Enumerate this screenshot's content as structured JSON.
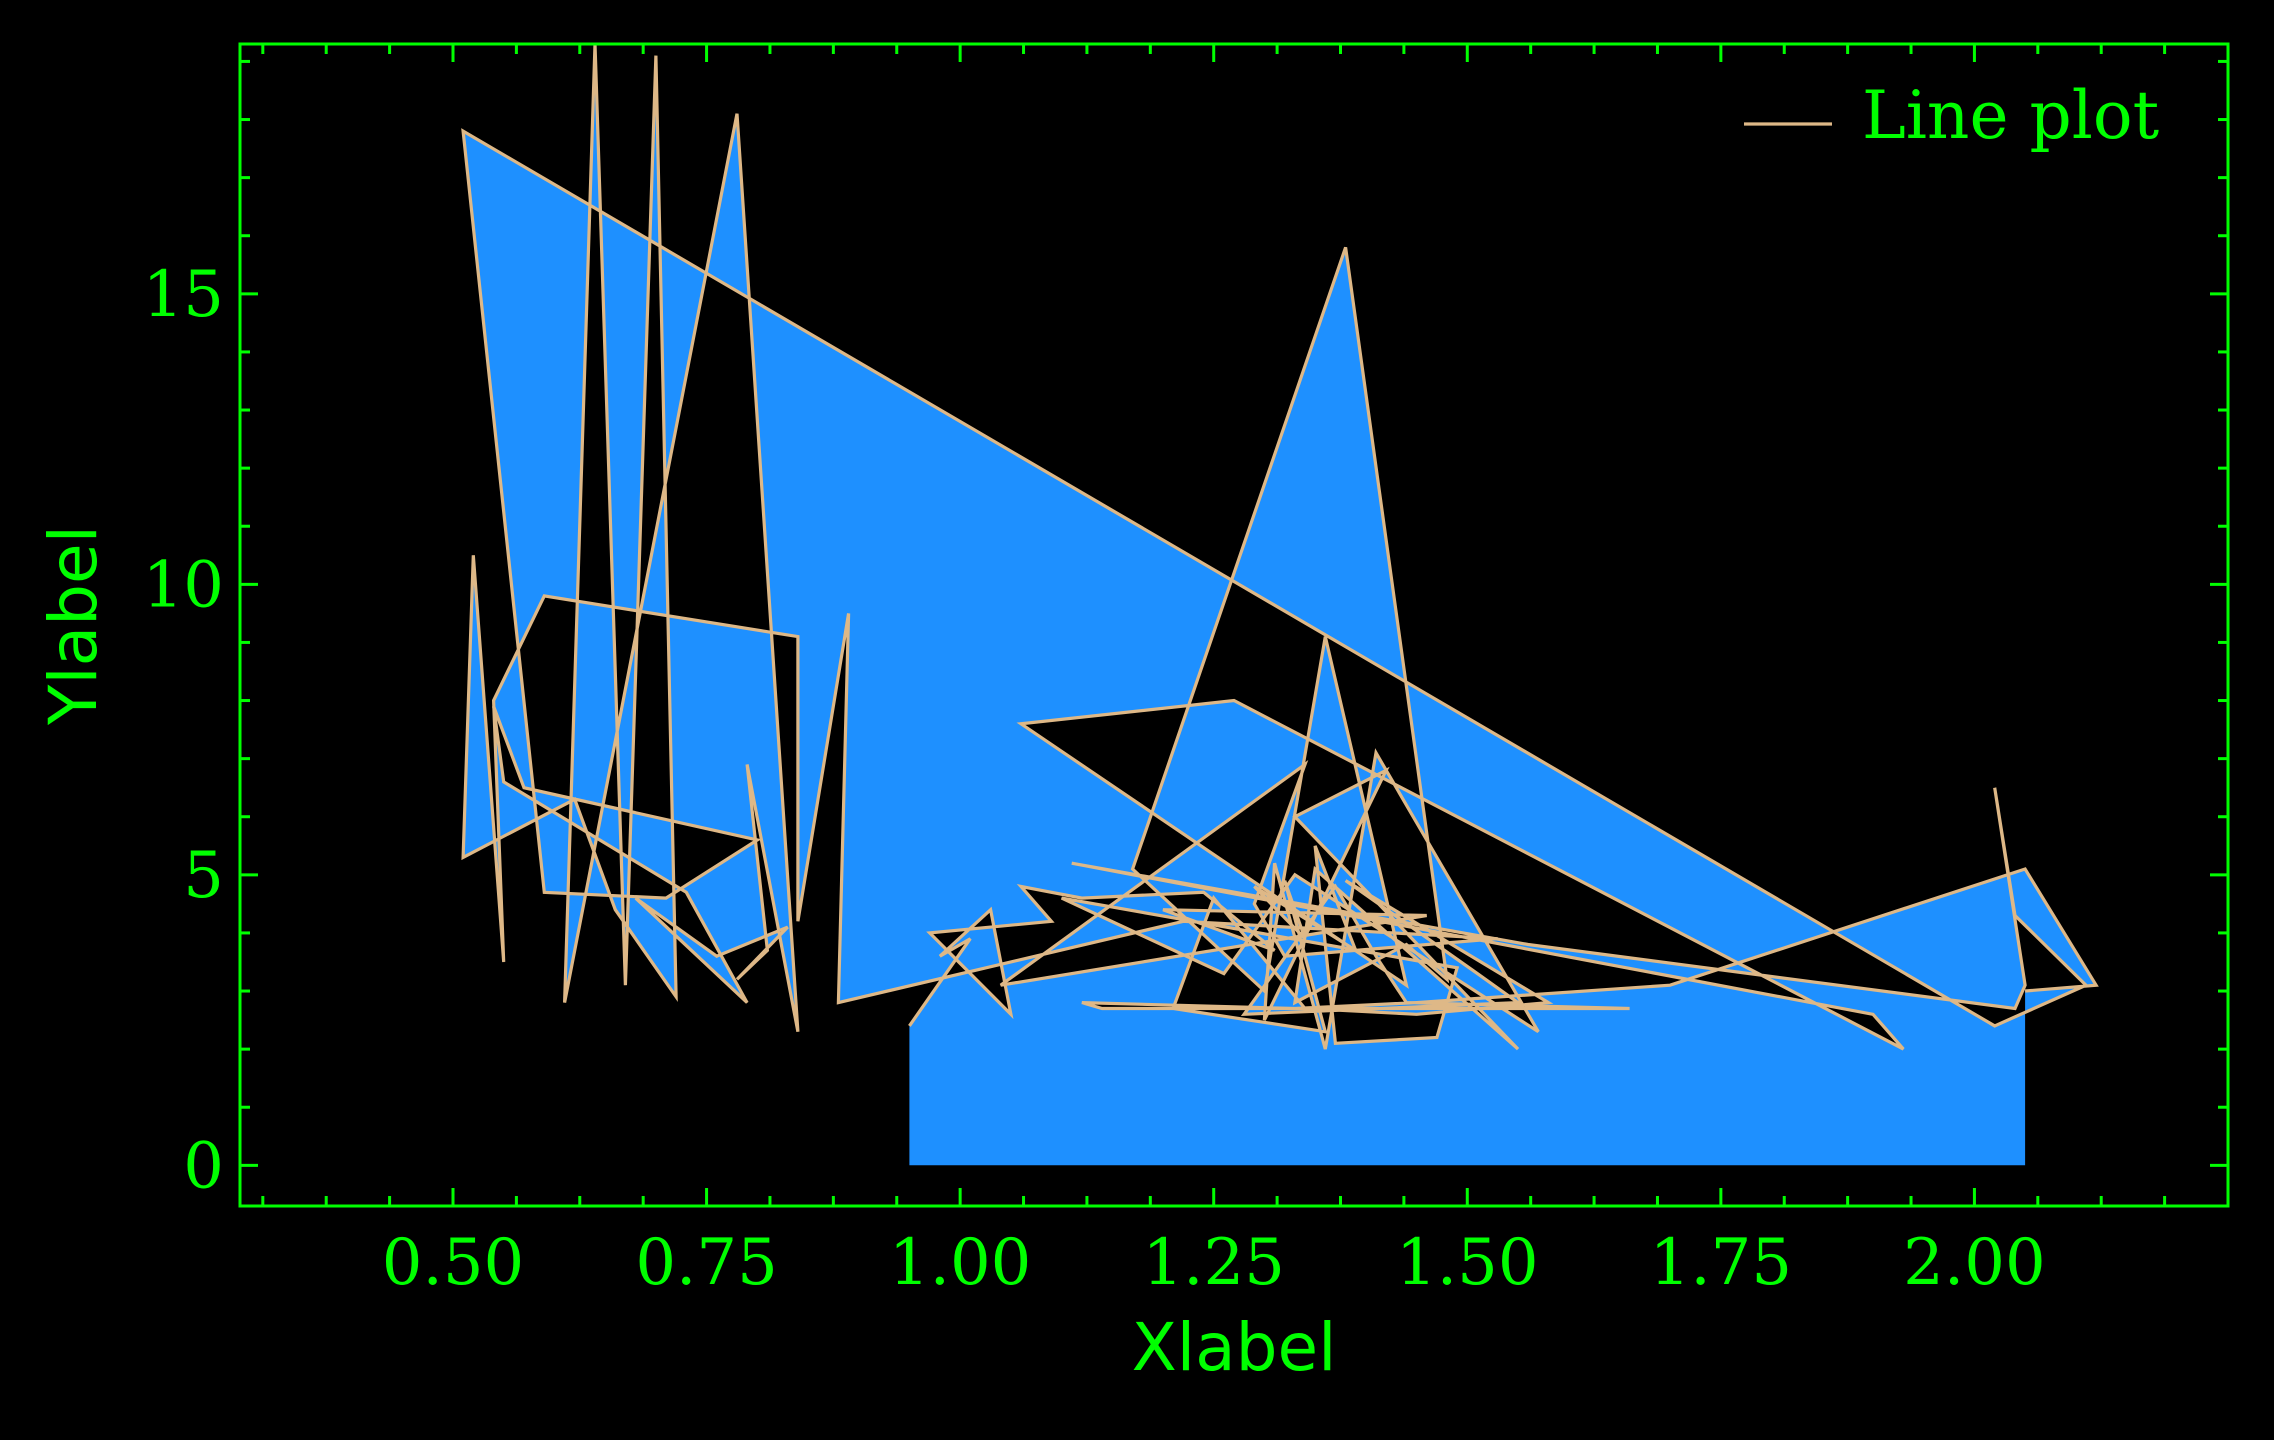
{
  "colors": {
    "background": "#000000",
    "axes": "#00ff00",
    "line": "#deb887",
    "fill": "#1e90ff"
  },
  "chart_data": {
    "type": "line",
    "title": "",
    "xlabel": "Xlabel",
    "ylabel": "Ylabel",
    "xlim": [
      0.29,
      2.25
    ],
    "ylim": [
      -0.7,
      19.3
    ],
    "x_ticks": [
      0.5,
      0.75,
      1.0,
      1.25,
      1.5,
      1.75,
      2.0
    ],
    "x_tick_labels": [
      "0.50",
      "0.75",
      "1.00",
      "1.25",
      "1.50",
      "1.75",
      "2.00"
    ],
    "y_ticks": [
      0,
      5,
      10,
      15
    ],
    "y_tick_labels": [
      "0",
      "5",
      "10",
      "15"
    ],
    "grid": false,
    "legend": {
      "position": "upper right",
      "entries": [
        "Line plot"
      ]
    },
    "series": [
      {
        "name": "Line plot",
        "style": "line with filled area to y=0",
        "x": [
          0.95,
          1.01,
          0.98,
          1.03,
          1.05,
          0.97,
          1.09,
          1.06,
          1.12,
          1.24,
          1.31,
          1.2,
          1.46,
          1.04,
          1.34,
          1.29,
          1.32,
          1.53,
          1.22,
          0.88,
          0.89,
          0.84,
          0.84,
          0.59,
          0.54,
          0.55,
          0.52,
          0.51,
          0.62,
          0.66,
          0.72,
          0.7,
          0.67,
          0.64,
          0.61,
          0.78,
          0.84,
          0.79,
          0.81,
          0.78,
          0.83,
          0.76,
          0.68,
          0.79,
          0.73,
          0.55,
          0.54,
          0.57,
          0.8,
          0.71,
          0.59,
          0.51,
          2.02,
          2.11,
          2.04,
          2.02,
          2.05,
          2.04,
          1.56,
          1.11,
          1.9,
          1.93,
          1.27,
          1.06,
          1.44,
          1.36,
          1.3,
          1.17,
          1.38,
          1.48,
          1.44,
          1.33,
          1.35,
          1.55,
          1.33,
          1.42,
          1.3,
          1.31,
          1.36,
          1.41,
          1.57,
          1.33,
          1.26,
          1.1,
          1.49,
          1.47,
          1.37,
          1.35,
          1.39,
          1.29,
          1.34,
          1.32,
          1.36,
          1.21,
          1.25,
          1.34,
          1.45,
          1.58,
          1.38,
          1.51,
          1.55,
          1.28,
          1.37,
          1.41,
          1.44,
          1.66,
          1.46,
          1.14,
          1.12,
          1.33,
          1.45,
          1.7,
          2.05,
          2.12,
          2.05
        ],
        "y": [
          2.4,
          3.9,
          3.6,
          4.4,
          2.6,
          4.0,
          4.2,
          4.8,
          4.6,
          4.7,
          3.7,
          4.4,
          4.3,
          3.1,
          6.9,
          4.5,
          3.6,
          3.9,
          4.2,
          2.8,
          9.5,
          4.2,
          9.1,
          9.8,
          8.0,
          3.5,
          10.5,
          5.3,
          6.3,
          4.4,
          2.9,
          19.1,
          3.1,
          19.3,
          2.8,
          18.1,
          2.3,
          6.9,
          3.7,
          3.2,
          4.1,
          3.6,
          4.6,
          2.8,
          4.7,
          6.6,
          7.9,
          6.5,
          5.6,
          4.6,
          4.7,
          17.8,
          2.4,
          3.1,
          4.3,
          6.5,
          3.1,
          2.7,
          3.8,
          5.2,
          2.6,
          2.0,
          8.0,
          7.6,
          3.1,
          9.1,
          3.0,
          5.1,
          15.8,
          3.2,
          3.8,
          2.8,
          5.1,
          2.0,
          6.0,
          6.8,
          2.5,
          5.2,
          2.0,
          7.1,
          2.3,
          5.0,
          3.3,
          4.6,
          3.4,
          2.2,
          2.1,
          5.5,
          3.7,
          4.8,
          3.9,
          4.9,
          2.3,
          2.7,
          4.6,
          2.7,
          2.6,
          2.8,
          4.9,
          3.3,
          2.8,
          2.6,
          4.8,
          3.6,
          2.8,
          2.7,
          2.7,
          2.7,
          2.8,
          2.7,
          2.8,
          3.1,
          5.1,
          3.1,
          3.0
        ]
      }
    ]
  }
}
